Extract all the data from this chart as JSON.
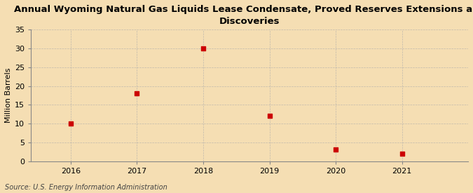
{
  "title": "Annual Wyoming Natural Gas Liquids Lease Condensate, Proved Reserves Extensions and\nDiscoveries",
  "ylabel": "Million Barrels",
  "source": "Source: U.S. Energy Information Administration",
  "x": [
    2016,
    2017,
    2018,
    2019,
    2020,
    2021
  ],
  "y": [
    10.0,
    18.0,
    30.0,
    12.0,
    3.1,
    2.0
  ],
  "marker_color": "#cc0000",
  "marker": "s",
  "marker_size": 4,
  "background_color": "#f5deb3",
  "plot_bg_color": "#f5deb3",
  "grid_color": "#aaaaaa",
  "ylim": [
    0,
    35
  ],
  "yticks": [
    0,
    5,
    10,
    15,
    20,
    25,
    30,
    35
  ],
  "xlim": [
    2015.4,
    2022.0
  ],
  "xticks": [
    2016,
    2017,
    2018,
    2019,
    2020,
    2021
  ],
  "title_fontsize": 9.5,
  "ylabel_fontsize": 8,
  "tick_fontsize": 8,
  "source_fontsize": 7
}
